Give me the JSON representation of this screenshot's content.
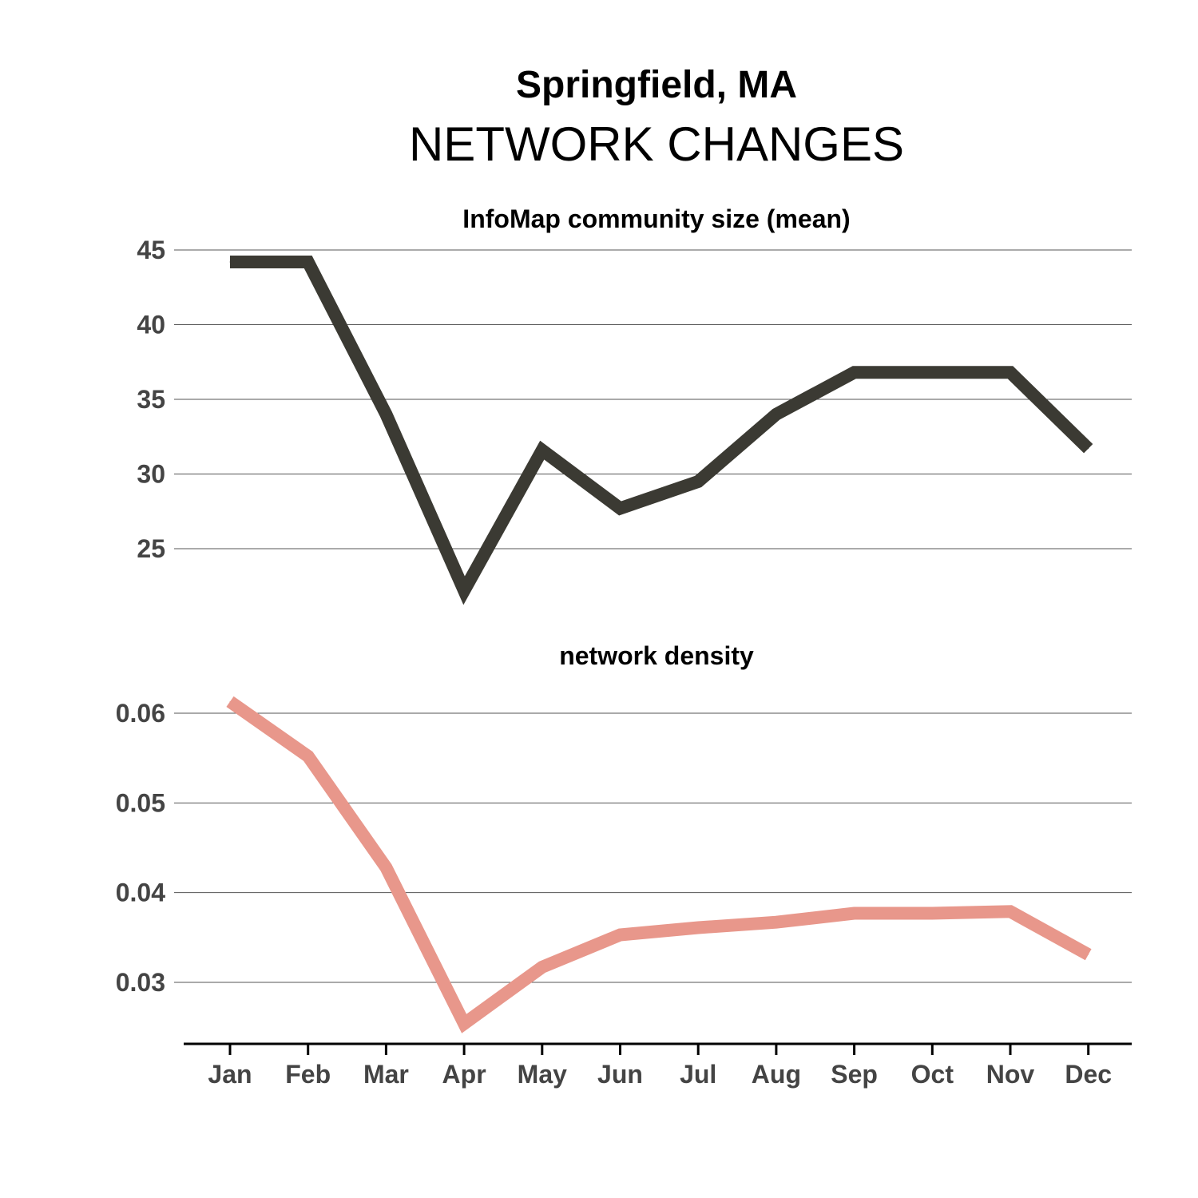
{
  "header": {
    "title": "Springfield, MA",
    "subtitle": "NETWORK CHANGES"
  },
  "chart_data": [
    {
      "type": "line",
      "title": "InfoMap community size (mean)",
      "categories": [
        "Jan",
        "Feb",
        "Mar",
        "Apr",
        "May",
        "Jun",
        "Jul",
        "Aug",
        "Sep",
        "Oct",
        "Nov",
        "Dec"
      ],
      "series": [
        {
          "values": [
            44.2,
            44.2,
            34.0,
            22.2,
            31.6,
            27.7,
            29.5,
            34.0,
            36.8,
            36.8,
            36.8,
            31.7
          ],
          "color": "#3b3a33"
        }
      ],
      "yticks": [
        "25",
        "30",
        "35",
        "40",
        "45"
      ],
      "ylim": [
        25,
        45
      ],
      "grid": true,
      "xlabel": "",
      "ylabel": ""
    },
    {
      "type": "line",
      "title": "network density",
      "categories": [
        "Jan",
        "Feb",
        "Mar",
        "Apr",
        "May",
        "Jun",
        "Jul",
        "Aug",
        "Sep",
        "Oct",
        "Nov",
        "Dec"
      ],
      "series": [
        {
          "values": [
            0.0613,
            0.0552,
            0.0428,
            0.0254,
            0.0317,
            0.0353,
            0.0361,
            0.0367,
            0.0377,
            0.0377,
            0.0379,
            0.0331
          ],
          "color": "#e8978b"
        }
      ],
      "yticks": [
        "0.03",
        "0.04",
        "0.05",
        "0.06"
      ],
      "ylim": [
        0.03,
        0.06
      ],
      "grid": true,
      "xlabel": "",
      "ylabel": ""
    }
  ]
}
